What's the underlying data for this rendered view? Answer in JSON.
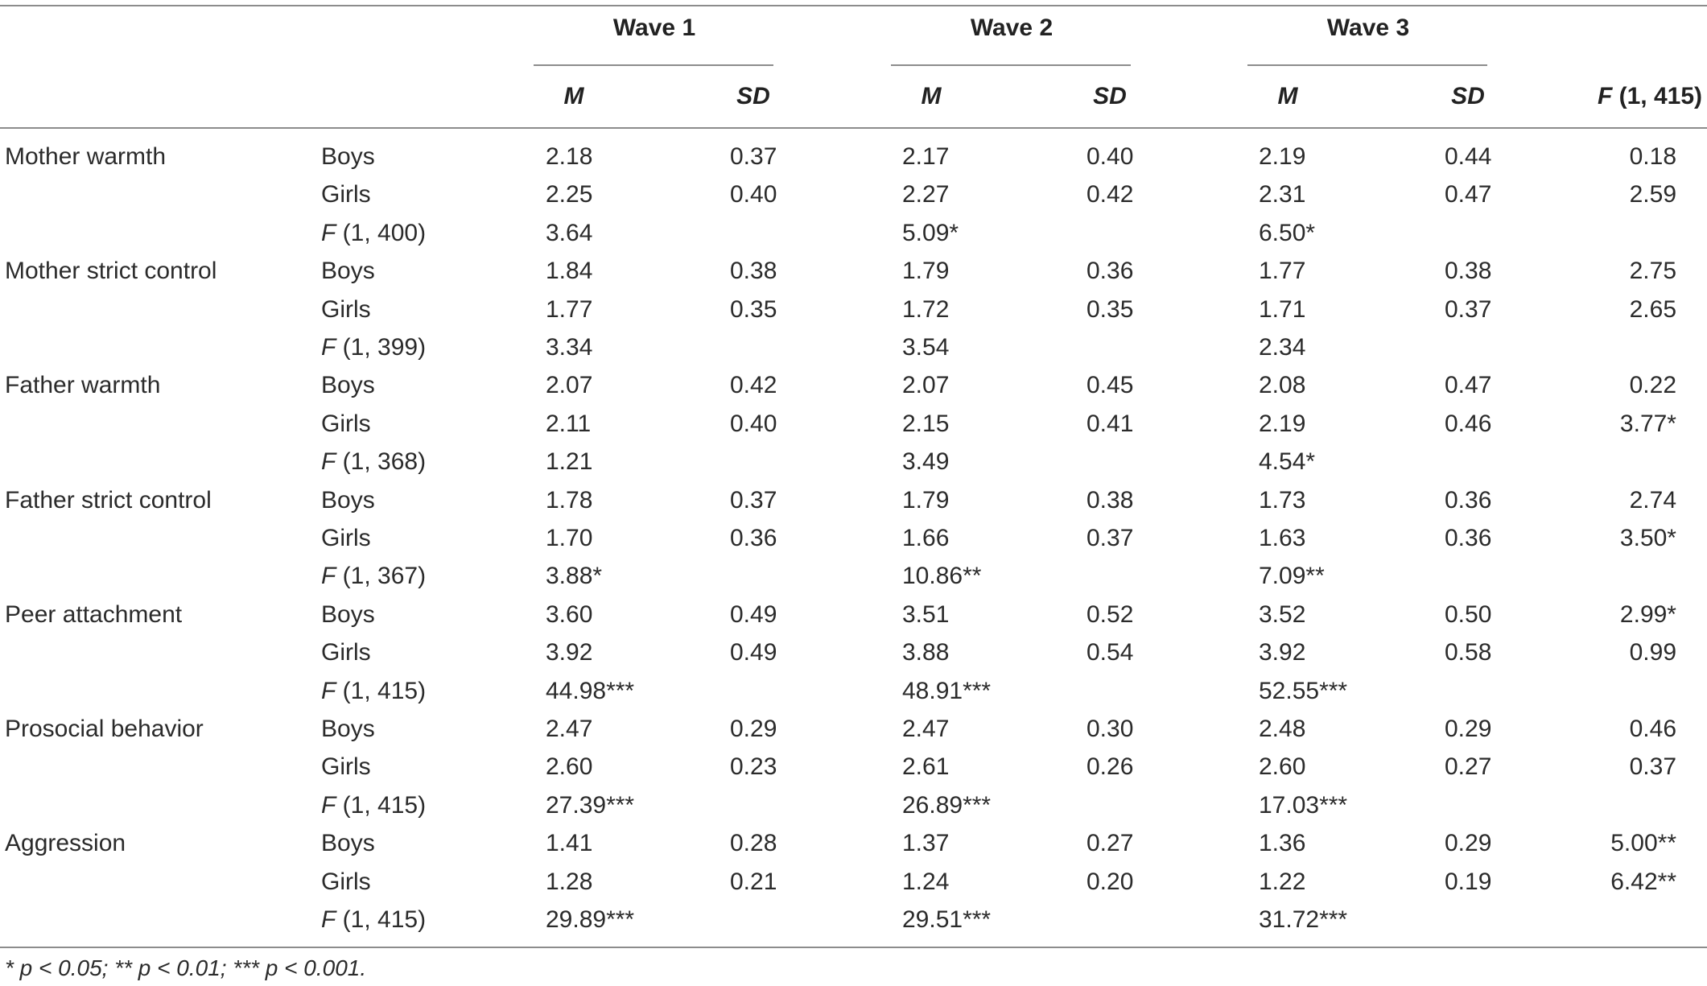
{
  "header": {
    "waves": [
      "Wave 1",
      "Wave 2",
      "Wave 3"
    ],
    "sub": {
      "m": "M",
      "sd": "SD",
      "f_letter": "F",
      "f_df": "(1, 415)"
    }
  },
  "rows": [
    {
      "measure": "Mother warmth",
      "group": "Boys",
      "w1m": "2.18",
      "w1sd": "0.37",
      "w2m": "2.17",
      "w2sd": "0.40",
      "w3m": "2.19",
      "w3sd": "0.44",
      "f": "0.18"
    },
    {
      "measure": "",
      "group": "Girls",
      "w1m": "2.25",
      "w1sd": "0.40",
      "w2m": "2.27",
      "w2sd": "0.42",
      "w3m": "2.31",
      "w3sd": "0.47",
      "f": "2.59"
    },
    {
      "measure": "",
      "group_f": "F",
      "group": "(1, 400)",
      "w1m": "3.64",
      "w1sd": "",
      "w2m": "5.09*",
      "w2sd": "",
      "w3m": "6.50*",
      "w3sd": "",
      "f": ""
    },
    {
      "measure": "Mother strict control",
      "group": "Boys",
      "w1m": "1.84",
      "w1sd": "0.38",
      "w2m": "1.79",
      "w2sd": "0.36",
      "w3m": "1.77",
      "w3sd": "0.38",
      "f": "2.75"
    },
    {
      "measure": "",
      "group": "Girls",
      "w1m": "1.77",
      "w1sd": "0.35",
      "w2m": "1.72",
      "w2sd": "0.35",
      "w3m": "1.71",
      "w3sd": "0.37",
      "f": "2.65"
    },
    {
      "measure": "",
      "group_f": "F",
      "group": "(1, 399)",
      "w1m": "3.34",
      "w1sd": "",
      "w2m": "3.54",
      "w2sd": "",
      "w3m": "2.34",
      "w3sd": "",
      "f": ""
    },
    {
      "measure": "Father warmth",
      "group": "Boys",
      "w1m": "2.07",
      "w1sd": "0.42",
      "w2m": "2.07",
      "w2sd": "0.45",
      "w3m": "2.08",
      "w3sd": "0.47",
      "f": "0.22"
    },
    {
      "measure": "",
      "group": "Girls",
      "w1m": "2.11",
      "w1sd": "0.40",
      "w2m": "2.15",
      "w2sd": "0.41",
      "w3m": "2.19",
      "w3sd": "0.46",
      "f": "3.77*"
    },
    {
      "measure": "",
      "group_f": "F",
      "group": "(1, 368)",
      "w1m": "1.21",
      "w1sd": "",
      "w2m": "3.49",
      "w2sd": "",
      "w3m": "4.54*",
      "w3sd": "",
      "f": ""
    },
    {
      "measure": "Father strict control",
      "group": "Boys",
      "w1m": "1.78",
      "w1sd": "0.37",
      "w2m": "1.79",
      "w2sd": "0.38",
      "w3m": "1.73",
      "w3sd": "0.36",
      "f": "2.74"
    },
    {
      "measure": "",
      "group": "Girls",
      "w1m": "1.70",
      "w1sd": "0.36",
      "w2m": "1.66",
      "w2sd": "0.37",
      "w3m": "1.63",
      "w3sd": "0.36",
      "f": "3.50*"
    },
    {
      "measure": "",
      "group_f": "F",
      "group": "(1, 367)",
      "w1m": "3.88*",
      "w1sd": "",
      "w2m": "10.86**",
      "w2sd": "",
      "w3m": "7.09**",
      "w3sd": "",
      "f": ""
    },
    {
      "measure": "Peer attachment",
      "group": "Boys",
      "w1m": "3.60",
      "w1sd": "0.49",
      "w2m": "3.51",
      "w2sd": "0.52",
      "w3m": "3.52",
      "w3sd": "0.50",
      "f": "2.99*"
    },
    {
      "measure": "",
      "group": "Girls",
      "w1m": "3.92",
      "w1sd": "0.49",
      "w2m": "3.88",
      "w2sd": "0.54",
      "w3m": "3.92",
      "w3sd": "0.58",
      "f": "0.99"
    },
    {
      "measure": "",
      "group_f": "F",
      "group": "(1, 415)",
      "w1m": "44.98***",
      "w1sd": "",
      "w2m": "48.91***",
      "w2sd": "",
      "w3m": "52.55***",
      "w3sd": "",
      "f": ""
    },
    {
      "measure": "Prosocial behavior",
      "group": "Boys",
      "w1m": "2.47",
      "w1sd": "0.29",
      "w2m": "2.47",
      "w2sd": "0.30",
      "w3m": "2.48",
      "w3sd": "0.29",
      "f": "0.46"
    },
    {
      "measure": "",
      "group": "Girls",
      "w1m": "2.60",
      "w1sd": "0.23",
      "w2m": "2.61",
      "w2sd": "0.26",
      "w3m": "2.60",
      "w3sd": "0.27",
      "f": "0.37"
    },
    {
      "measure": "",
      "group_f": "F",
      "group": "(1, 415)",
      "w1m": "27.39***",
      "w1sd": "",
      "w2m": "26.89***",
      "w2sd": "",
      "w3m": "17.03***",
      "w3sd": "",
      "f": ""
    },
    {
      "measure": "Aggression",
      "group": "Boys",
      "w1m": "1.41",
      "w1sd": "0.28",
      "w2m": "1.37",
      "w2sd": "0.27",
      "w3m": "1.36",
      "w3sd": "0.29",
      "f": "5.00**"
    },
    {
      "measure": "",
      "group": "Girls",
      "w1m": "1.28",
      "w1sd": "0.21",
      "w2m": "1.24",
      "w2sd": "0.20",
      "w3m": "1.22",
      "w3sd": "0.19",
      "f": "6.42**"
    },
    {
      "measure": "",
      "group_f": "F",
      "group": "(1, 415)",
      "w1m": "29.89***",
      "w1sd": "",
      "w2m": "29.51***",
      "w2sd": "",
      "w3m": "31.72***",
      "w3sd": "",
      "f": ""
    }
  ],
  "footnote": "* p < 0.05; ** p < 0.01; *** p < 0.001."
}
